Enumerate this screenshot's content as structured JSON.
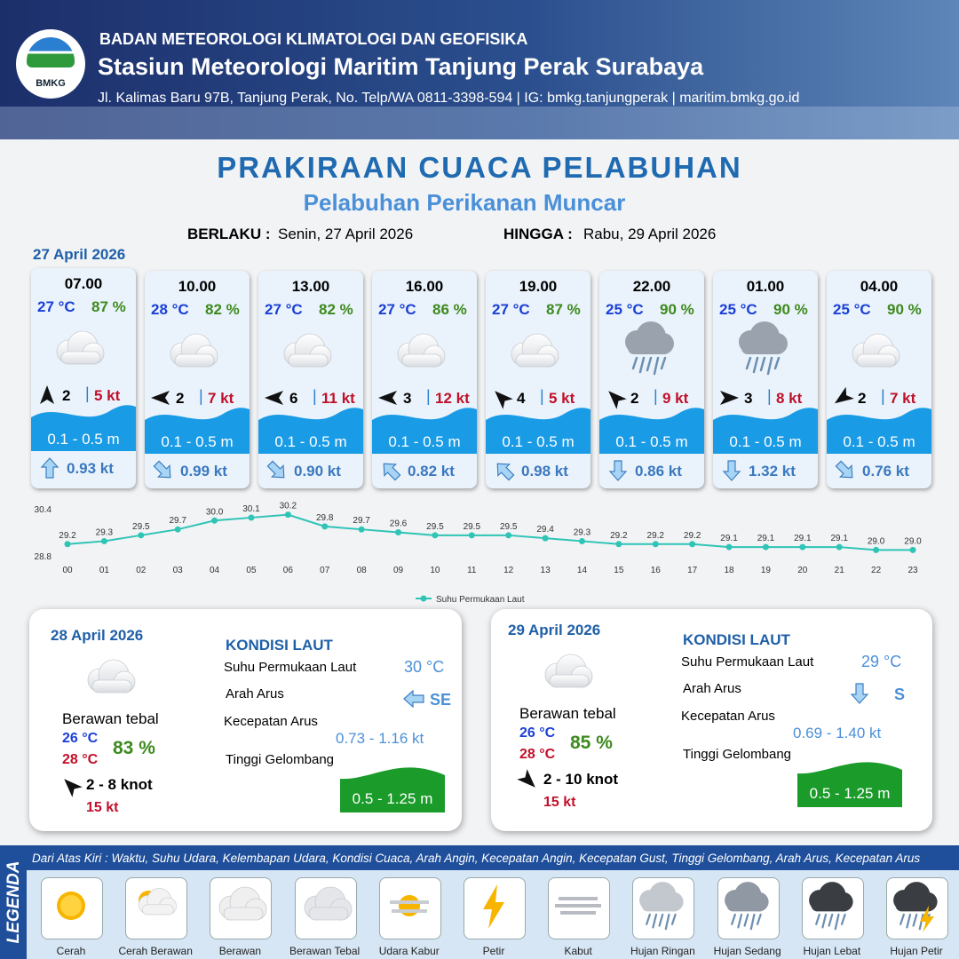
{
  "header": {
    "logo": "BMKG",
    "agency": "BADAN METEOROLOGI KLIMATOLOGI DAN GEOFISIKA",
    "station": "Stasiun Meteorologi Maritim Tanjung Perak Surabaya",
    "address": "Jl. Kalimas Baru 97B, Tanjung Perak, No. Telp/WA 0811-3398-594 | IG: bmkg.tanjungperak | maritim.bmkg.go.id"
  },
  "title": "PRAKIRAAN CUACA PELABUHAN",
  "subtitle": "Pelabuhan Perikanan Muncar",
  "validity": {
    "from_label": "BERLAKU :",
    "from": "Senin, 27 April 2026",
    "to_label": "HINGGA :",
    "to": "Rabu, 29 April 2026"
  },
  "day1_date": "27 April 2026",
  "cards": [
    {
      "time": "07.00",
      "temp": "27 °C",
      "humidity": "87 %",
      "wind": "2",
      "gust": "5 kt",
      "wave": "0.1 - 0.5 m",
      "current": "0.93 kt"
    },
    {
      "time": "10.00",
      "temp": "28 °C",
      "humidity": "82 %",
      "wind": "2",
      "gust": "7 kt",
      "wave": "0.1 - 0.5 m",
      "current": "0.99 kt"
    },
    {
      "time": "13.00",
      "temp": "27 °C",
      "humidity": "82 %",
      "wind": "6",
      "gust": "11 kt",
      "wave": "0.1 - 0.5 m",
      "current": "0.90 kt"
    },
    {
      "time": "16.00",
      "temp": "27 °C",
      "humidity": "86 %",
      "wind": "3",
      "gust": "12 kt",
      "wave": "0.1 - 0.5 m",
      "current": "0.82 kt"
    },
    {
      "time": "19.00",
      "temp": "27 °C",
      "humidity": "87 %",
      "wind": "4",
      "gust": "5 kt",
      "wave": "0.1 - 0.5 m",
      "current": "0.98 kt"
    },
    {
      "time": "22.00",
      "temp": "25 °C",
      "humidity": "90 %",
      "wind": "2",
      "gust": "9 kt",
      "wave": "0.1 - 0.5 m",
      "current": "0.86 kt"
    },
    {
      "time": "01.00",
      "temp": "25 °C",
      "humidity": "90 %",
      "wind": "3",
      "gust": "8 kt",
      "wave": "0.1 - 0.5 m",
      "current": "1.32 kt"
    },
    {
      "time": "04.00",
      "temp": "25 °C",
      "humidity": "90 %",
      "wind": "2",
      "gust": "7 kt",
      "wave": "0.1 - 0.5 m",
      "current": "0.76 kt"
    }
  ],
  "chart_data": {
    "type": "line",
    "categories": [
      "00",
      "01",
      "02",
      "03",
      "04",
      "05",
      "06",
      "07",
      "08",
      "09",
      "10",
      "11",
      "12",
      "13",
      "14",
      "15",
      "16",
      "17",
      "18",
      "19",
      "20",
      "21",
      "22",
      "23"
    ],
    "series": [
      {
        "name": "Suhu Permukaan Laut",
        "color": "#2ec4b6",
        "values": [
          29.2,
          29.3,
          29.5,
          29.7,
          30.0,
          30.1,
          30.2,
          29.8,
          29.7,
          29.6,
          29.5,
          29.5,
          29.5,
          29.4,
          29.3,
          29.2,
          29.2,
          29.2,
          29.1,
          29.1,
          29.1,
          29.1,
          29.0,
          29.0
        ],
        "value_labels": [
          "29.2",
          "29.3",
          "29.5",
          "29.7",
          "30.0",
          "30.1",
          "30.2",
          "29.8",
          "29.7",
          "29.6",
          "29.5",
          "29.5",
          "29.5",
          "29.4",
          "29.3",
          "29.2",
          "29.2",
          "29.2",
          "29.1",
          "29.1",
          "29.1",
          "29.1",
          "29.0",
          "29.0"
        ]
      }
    ],
    "ylim": [
      28.8,
      30.4
    ],
    "yticks": [
      28.8,
      30.4
    ],
    "grid": false,
    "legend": "bottom"
  },
  "days": [
    {
      "date": "28 April 2026",
      "condition": "Berawan tebal",
      "temp_min": "26 °C",
      "temp_max": "28 °C",
      "humidity": "83 %",
      "wind": "2 - 8 knot",
      "gust": "15 kt",
      "sea_heading": "KONDISI LAUT",
      "sst_label": "Suhu Permukaan Laut",
      "sst": "30 °C",
      "current_dir_label": "Arah Arus",
      "current_dir": "SE",
      "current_speed_label": "Kecepatan Arus",
      "current_speed": "0.73 - 1.16 kt",
      "wave_label": "Tinggi Gelombang",
      "wave": "0.5 - 1.25 m"
    },
    {
      "date": "29 April 2026",
      "condition": "Berawan tebal",
      "temp_min": "26 °C",
      "temp_max": "28 °C",
      "humidity": "85 %",
      "wind": "2 - 10 knot",
      "gust": "15 kt",
      "sea_heading": "KONDISI LAUT",
      "sst_label": "Suhu Permukaan Laut",
      "sst": "29 °C",
      "current_dir_label": "Arah Arus",
      "current_dir": "S",
      "current_speed_label": "Kecepatan Arus",
      "current_speed": "0.69 - 1.40 kt",
      "wave_label": "Tinggi Gelombang",
      "wave": "0.5 - 1.25 m"
    }
  ],
  "legend": {
    "title": "LEGENDA",
    "description": "Dari Atas Kiri : Waktu, Suhu Udara, Kelembapan Udara, Kondisi Cuaca, Arah Angin, Kecepatan Angin, Kecepatan Gust, Tinggi Gelombang, Arah Arus, Kecepatan Arus",
    "items": [
      "Cerah",
      "Cerah Berawan",
      "Berawan",
      "Berawan Tebal",
      "Udara Kabur",
      "Petir",
      "Kabut",
      "Hujan Ringan",
      "Hujan Sedang",
      "Hujan Lebat",
      "Hujan Petir"
    ]
  }
}
